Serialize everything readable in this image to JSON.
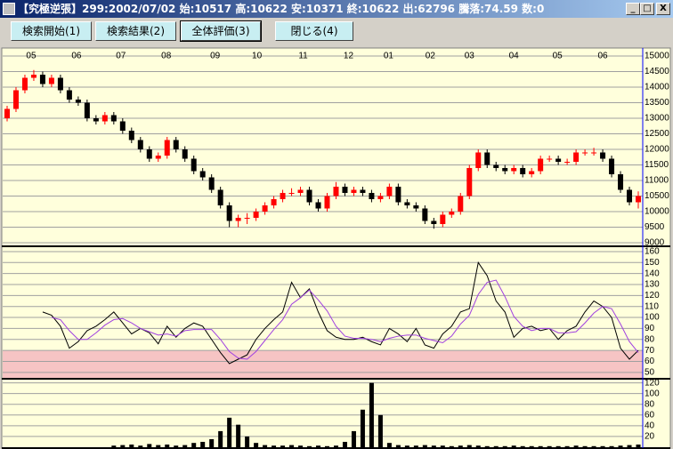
{
  "window": {
    "title": "【究極逆張】299:2002/07/02 始:10517 高:10622 安:10371 終:10622 出:62796 騰落:74.59 数:0",
    "buttons": [
      "検索開始(1)",
      "検索結果(2)",
      "全体評価(3)",
      "閉じる(4)"
    ]
  },
  "chart_data": [
    {
      "type": "candlestick",
      "xlim": [
        0,
        72
      ],
      "xticks": [
        {
          "value": 3.2,
          "label": "05"
        },
        {
          "value": 8.3,
          "label": "06"
        },
        {
          "value": 13.3,
          "label": "07"
        },
        {
          "value": 18.4,
          "label": "08"
        },
        {
          "value": 23.9,
          "label": "09"
        },
        {
          "value": 28.6,
          "label": "10"
        },
        {
          "value": 33.8,
          "label": "11"
        },
        {
          "value": 38.9,
          "label": "12"
        },
        {
          "value": 43.4,
          "label": "01"
        },
        {
          "value": 48.1,
          "label": "02"
        },
        {
          "value": 52.5,
          "label": "03"
        },
        {
          "value": 57.5,
          "label": "04"
        },
        {
          "value": 62.4,
          "label": "05"
        },
        {
          "value": 67.5,
          "label": "06"
        }
      ],
      "ylim": [
        8914,
        15200
      ],
      "yticks": [
        9000,
        9500,
        10000,
        10500,
        11000,
        11500,
        12000,
        12500,
        13000,
        13500,
        14000,
        14500,
        15000
      ],
      "grid": true,
      "up_color": "#ff0000",
      "down_color": "#000000",
      "open": [
        13000,
        13300,
        13900,
        14300,
        14400,
        14100,
        14300,
        13900,
        13600,
        13500,
        13000,
        12900,
        13100,
        12900,
        12600,
        12300,
        12000,
        11700,
        11800,
        12300,
        12000,
        11700,
        11300,
        11100,
        10700,
        10200,
        9700,
        9800,
        9800,
        10000,
        10200,
        10400,
        10600,
        10600,
        10700,
        10300,
        10100,
        10500,
        10800,
        10600,
        10700,
        10600,
        10400,
        10500,
        10800,
        10300,
        10200,
        10100,
        9700,
        9600,
        9900,
        10000,
        10500,
        11400,
        11900,
        11500,
        11400,
        11300,
        11400,
        11200,
        11300,
        11700,
        11700,
        11600,
        11600,
        11900,
        11900,
        11900,
        11700,
        11200,
        10700,
        10300
      ],
      "high": [
        13400,
        14000,
        14400,
        14550,
        14500,
        14400,
        14400,
        14000,
        13700,
        13600,
        13100,
        13200,
        13200,
        13000,
        12700,
        12400,
        12100,
        11900,
        12400,
        12400,
        12100,
        11800,
        11400,
        11200,
        10800,
        10300,
        9900,
        9950,
        10100,
        10300,
        10500,
        10700,
        10750,
        10800,
        10800,
        10400,
        10600,
        10950,
        10900,
        10800,
        10800,
        10700,
        10600,
        10900,
        10900,
        10400,
        10300,
        10200,
        9800,
        10000,
        10100,
        10600,
        11500,
        12000,
        12000,
        11600,
        11500,
        11500,
        11500,
        11400,
        11800,
        11800,
        11800,
        11700,
        12000,
        12000,
        12050,
        12000,
        11800,
        11300,
        10800,
        10650
      ],
      "low": [
        12900,
        13200,
        13800,
        14200,
        14000,
        14000,
        13800,
        13500,
        13400,
        12900,
        12800,
        12800,
        12800,
        12500,
        12200,
        11900,
        11600,
        11600,
        11700,
        11900,
        11600,
        11200,
        11000,
        10600,
        10100,
        9500,
        9500,
        9600,
        9700,
        9900,
        10100,
        10300,
        10500,
        10500,
        10200,
        10000,
        10000,
        10400,
        10500,
        10500,
        10500,
        10300,
        10300,
        10400,
        10200,
        10100,
        10000,
        9600,
        9450,
        9500,
        9800,
        9900,
        10400,
        11300,
        11400,
        11300,
        11200,
        11200,
        11100,
        11100,
        11200,
        11600,
        11500,
        11500,
        11500,
        11800,
        11800,
        11600,
        11100,
        10600,
        10200,
        10100
      ],
      "close": [
        13300,
        13900,
        14300,
        14400,
        14100,
        14300,
        13900,
        13600,
        13500,
        13000,
        12900,
        13100,
        12900,
        12600,
        12300,
        12000,
        11700,
        11800,
        12300,
        12000,
        11700,
        11300,
        11100,
        10700,
        10200,
        9700,
        9800,
        9800,
        10000,
        10200,
        10400,
        10600,
        10600,
        10700,
        10300,
        10100,
        10500,
        10800,
        10600,
        10700,
        10600,
        10400,
        10500,
        10800,
        10300,
        10200,
        10100,
        9700,
        9600,
        9900,
        10000,
        10500,
        11400,
        11900,
        11500,
        11400,
        11300,
        11400,
        11200,
        11300,
        11700,
        11700,
        11600,
        11600,
        11900,
        11900,
        11900,
        11700,
        11200,
        10700,
        10300,
        10500
      ]
    },
    {
      "type": "line",
      "xlim": [
        0,
        72
      ],
      "ylim": [
        45,
        164
      ],
      "yticks": [
        50,
        60,
        70,
        80,
        90,
        100,
        110,
        120,
        130,
        140,
        150,
        160
      ],
      "grid": true,
      "shade_below": 70,
      "shade_color": "#f6c4c4",
      "series": [
        {
          "color": "#000000",
          "values": [
            null,
            null,
            null,
            null,
            105,
            102,
            92,
            72,
            78,
            88,
            92,
            98,
            105,
            95,
            85,
            90,
            86,
            76,
            92,
            82,
            90,
            95,
            92,
            80,
            68,
            58,
            62,
            66,
            80,
            90,
            98,
            105,
            132,
            118,
            126,
            105,
            88,
            82,
            80,
            80,
            82,
            78,
            75,
            90,
            85,
            78,
            90,
            75,
            72,
            85,
            92,
            105,
            108,
            150,
            138,
            115,
            105,
            82,
            90,
            92,
            88,
            90,
            80,
            88,
            92,
            105,
            115,
            110,
            100,
            72,
            62,
            70
          ]
        },
        {
          "color": "#a040e0",
          "values": [
            null,
            null,
            null,
            null,
            null,
            100,
            98,
            88,
            80,
            80,
            86,
            93,
            98,
            99,
            95,
            90,
            87,
            84,
            85,
            83,
            88,
            89,
            89,
            89,
            80,
            69,
            63,
            62,
            69,
            79,
            89,
            98,
            112,
            118,
            125,
            116,
            106,
            92,
            83,
            81,
            81,
            80,
            78,
            81,
            83,
            84,
            84,
            81,
            79,
            77,
            83,
            94,
            102,
            121,
            132,
            134,
            119,
            101,
            92,
            88,
            90,
            90,
            86,
            86,
            87,
            95,
            104,
            110,
            108,
            94,
            78,
            68
          ]
        }
      ]
    },
    {
      "type": "bar",
      "xlim": [
        0,
        72
      ],
      "ylim": [
        0,
        126
      ],
      "yticks": [
        20,
        40,
        60,
        80,
        100,
        120
      ],
      "grid": true,
      "color": "#000000",
      "values": [
        0,
        0,
        0,
        0,
        0,
        0,
        0,
        0,
        0,
        0,
        0,
        0,
        3,
        4,
        5,
        3,
        6,
        4,
        5,
        3,
        4,
        8,
        10,
        15,
        30,
        55,
        42,
        20,
        8,
        4,
        3,
        3,
        4,
        3,
        2,
        3,
        2,
        3,
        10,
        30,
        70,
        120,
        60,
        8,
        4,
        3,
        3,
        4,
        3,
        3,
        2,
        3,
        4,
        3,
        2,
        2,
        2,
        3,
        2,
        2,
        2,
        2,
        2,
        2,
        3,
        2,
        2,
        2,
        2,
        3,
        4,
        5
      ]
    }
  ]
}
